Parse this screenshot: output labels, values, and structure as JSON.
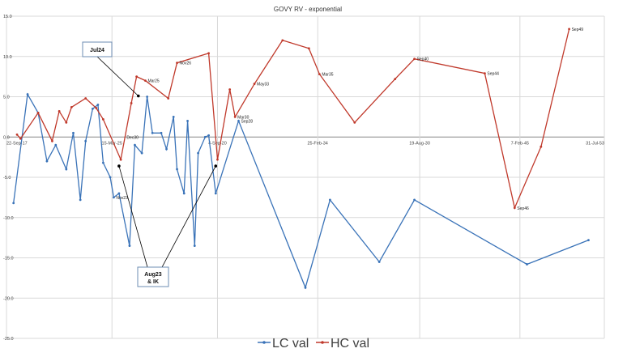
{
  "chart_data": {
    "type": "line",
    "title": "GOVY RV - exponential",
    "ylim": [
      -25,
      15
    ],
    "y_ticks": [
      "15.0",
      "10.0",
      "5.0",
      "0.0",
      "-5.0",
      "-10.0",
      "-15.0",
      "-20.0",
      "-25.0"
    ],
    "x_ticks": [
      "22-Sep-17",
      "15-Mar-25",
      "4-Sep-20",
      "25-Feb-34",
      "19-Aug-30",
      "7-Feb-45",
      "31-Jul-53"
    ],
    "grid": true,
    "legend_position": "bottom",
    "series": [
      {
        "name": "LC val",
        "color": "#3a73b8",
        "values": [
          [
            0.2,
            -8.2
          ],
          [
            0.6,
            5.3
          ],
          [
            0.9,
            3.0
          ],
          [
            1.15,
            -3.0
          ],
          [
            1.4,
            -1.0
          ],
          [
            1.7,
            -4.0
          ],
          [
            1.9,
            0.5
          ],
          [
            2.1,
            -7.8
          ],
          [
            2.25,
            -0.5
          ],
          [
            2.45,
            3.5
          ],
          [
            2.6,
            4.0
          ],
          [
            2.75,
            -3.2
          ],
          [
            2.95,
            -5.0
          ],
          [
            3.05,
            -7.5
          ],
          [
            3.2,
            -7.0
          ],
          [
            3.5,
            -13.5
          ],
          [
            3.65,
            -1.0
          ],
          [
            3.85,
            -2.0
          ],
          [
            4.0,
            5.0
          ],
          [
            4.15,
            0.5
          ],
          [
            4.4,
            0.5
          ],
          [
            4.55,
            -1.5
          ],
          [
            4.75,
            2.5
          ],
          [
            4.85,
            -4.0
          ],
          [
            5.05,
            -7.0
          ],
          [
            5.15,
            2.0
          ],
          [
            5.35,
            -13.5
          ],
          [
            5.45,
            -2.0
          ],
          [
            5.65,
            0.0
          ],
          [
            5.75,
            0.2
          ],
          [
            5.95,
            -7.0
          ],
          [
            6.6,
            2.0
          ],
          [
            8.5,
            -18.7
          ],
          [
            9.2,
            -7.8
          ],
          [
            10.6,
            -15.5
          ],
          [
            11.6,
            -7.8
          ],
          [
            14.8,
            -15.8
          ],
          [
            16.55,
            -12.8
          ]
        ],
        "labels": [
          {
            "x": 3.05,
            "y": -7.5,
            "text": "Nov23"
          },
          {
            "x": 6.6,
            "y": 2.0,
            "text": "Sep28"
          }
        ]
      },
      {
        "name": "HC val",
        "color": "#c0392b",
        "values": [
          [
            0.3,
            0.3
          ],
          [
            0.4,
            -0.2
          ],
          [
            0.9,
            3.0
          ],
          [
            1.3,
            -0.5
          ],
          [
            1.5,
            3.2
          ],
          [
            1.7,
            1.8
          ],
          [
            1.85,
            3.7
          ],
          [
            2.25,
            4.8
          ],
          [
            2.55,
            3.6
          ],
          [
            2.75,
            2.2
          ],
          [
            3.25,
            -2.8
          ],
          [
            3.55,
            4.2
          ],
          [
            3.7,
            7.5
          ],
          [
            3.95,
            7.0
          ],
          [
            4.6,
            4.8
          ],
          [
            4.85,
            9.2
          ],
          [
            5.75,
            10.4
          ],
          [
            6.0,
            -2.8
          ],
          [
            6.35,
            5.9
          ],
          [
            6.5,
            2.5
          ],
          [
            7.05,
            6.6
          ],
          [
            7.85,
            12.0
          ],
          [
            8.6,
            11.0
          ],
          [
            8.9,
            7.8
          ],
          [
            9.9,
            1.8
          ],
          [
            11.05,
            7.2
          ],
          [
            11.6,
            9.7
          ],
          [
            13.6,
            7.9
          ],
          [
            14.45,
            -8.8
          ],
          [
            15.2,
            -1.2
          ],
          [
            16.0,
            13.4
          ]
        ],
        "labels": [
          {
            "x": 3.35,
            "y": 0.0,
            "text": "Dec30"
          },
          {
            "x": 3.95,
            "y": 7.0,
            "text": "Mar25"
          },
          {
            "x": 4.85,
            "y": 9.2,
            "text": "Nov26"
          },
          {
            "x": 6.5,
            "y": 2.5,
            "text": "Mar30"
          },
          {
            "x": 7.05,
            "y": 6.6,
            "text": "May33"
          },
          {
            "x": 8.9,
            "y": 7.8,
            "text": "Mar35"
          },
          {
            "x": 11.6,
            "y": 9.7,
            "text": "Sep40"
          },
          {
            "x": 13.6,
            "y": 7.9,
            "text": "Sep44"
          },
          {
            "x": 14.45,
            "y": -8.8,
            "text": "Sep46"
          },
          {
            "x": 16.0,
            "y": 13.4,
            "text": "Sep49"
          }
        ]
      }
    ],
    "callouts": [
      {
        "text": "Jul24",
        "lines": [
          "Jul24"
        ],
        "target": [
          3.75,
          5.1
        ]
      },
      {
        "text": "Aug23 & IK",
        "lines": [
          "Aug23",
          "& IK"
        ],
        "targets": [
          [
            3.2,
            -3.6
          ],
          [
            5.95,
            -3.6
          ]
        ]
      }
    ]
  }
}
